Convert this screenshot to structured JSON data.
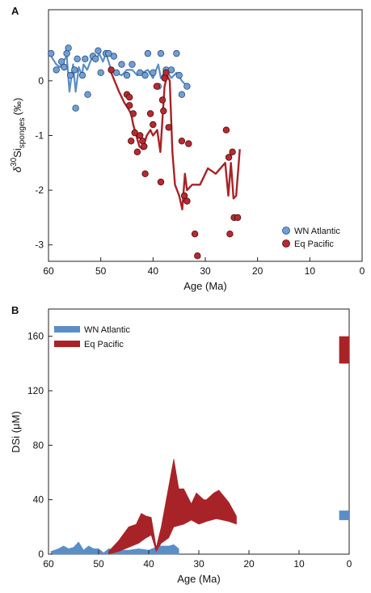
{
  "colors": {
    "wn": "#5b8ec6",
    "eq": "#a82328",
    "wn_marker": "#6f9fd6",
    "eq_marker": "#b72a30"
  },
  "chart_data": [
    {
      "panel": "A",
      "type": "scatter",
      "xlabel": "Age (Ma)",
      "ylabel": "δ30Si sponges (‰)",
      "ylabel_parts": {
        "delta": "δ",
        "sup": "30",
        "base": "Si",
        "sub": "sponges",
        "unit": "(‰)"
      },
      "xlim": [
        60,
        0
      ],
      "ylim": [
        -3.3,
        1.3
      ],
      "x_ticks": [
        60,
        50,
        40,
        30,
        20,
        10,
        0
      ],
      "y_ticks": [
        0,
        -1,
        -2,
        -3
      ],
      "x_tick_labels": [
        "60",
        "50",
        "40",
        "30",
        "20",
        "10",
        "0"
      ],
      "y_tick_labels": [
        "0",
        "-1",
        "-2",
        "-3"
      ],
      "legend": "bottom-right",
      "grid": false,
      "series": [
        {
          "name": "WN Atlantic",
          "color": "#5b8ec6",
          "points": [
            [
              59.5,
              0.5
            ],
            [
              58.5,
              0.2
            ],
            [
              57.5,
              0.35
            ],
            [
              57,
              0.25
            ],
            [
              56.5,
              0.5
            ],
            [
              56.2,
              0.6
            ],
            [
              55.8,
              0.1
            ],
            [
              55,
              0.2
            ],
            [
              54.8,
              -0.5
            ],
            [
              54.5,
              0.4
            ],
            [
              53.5,
              0.1
            ],
            [
              53,
              0.4
            ],
            [
              52.5,
              -0.25
            ],
            [
              51.5,
              0.45
            ],
            [
              51,
              0.4
            ],
            [
              50.5,
              0.55
            ],
            [
              50,
              0.15
            ],
            [
              49,
              0.5
            ],
            [
              48.5,
              0.5
            ],
            [
              47.5,
              0.45
            ],
            [
              47,
              0.15
            ],
            [
              46,
              0.3
            ],
            [
              45,
              0.1
            ],
            [
              44,
              0.3
            ],
            [
              42.5,
              0.15
            ],
            [
              41.5,
              0.1
            ],
            [
              41,
              0.5
            ],
            [
              40,
              0.15
            ],
            [
              39,
              -0.1
            ],
            [
              38.5,
              0.5
            ],
            [
              37.5,
              0.2
            ],
            [
              36.5,
              0.2
            ],
            [
              35.5,
              0.5
            ],
            [
              35,
              0.1
            ],
            [
              34.5,
              -0.25
            ],
            [
              33.5,
              -0.1
            ]
          ],
          "trend": [
            [
              59.5,
              0.45
            ],
            [
              58.5,
              0.3
            ],
            [
              57.8,
              0.25
            ],
            [
              57.2,
              0.35
            ],
            [
              56.5,
              0.45
            ],
            [
              56,
              -0.2
            ],
            [
              55.3,
              0.3
            ],
            [
              54.8,
              -0.2
            ],
            [
              54.2,
              0.25
            ],
            [
              53.6,
              0.1
            ],
            [
              53.3,
              0.3
            ],
            [
              52.6,
              0.2
            ],
            [
              52,
              0.35
            ],
            [
              51.5,
              0.45
            ],
            [
              51,
              0.35
            ],
            [
              50.3,
              0.5
            ],
            [
              49.6,
              0.35
            ],
            [
              49,
              0.5
            ],
            [
              48,
              0.2
            ],
            [
              47,
              0.15
            ],
            [
              46,
              0.1
            ],
            [
              45,
              0.2
            ],
            [
              44,
              0.2
            ],
            [
              43,
              0.1
            ],
            [
              42,
              0.15
            ],
            [
              41,
              0.2
            ],
            [
              40,
              0.05
            ],
            [
              39,
              0.3
            ],
            [
              38.5,
              0.05
            ],
            [
              37.5,
              0.2
            ],
            [
              36.5,
              0.05
            ],
            [
              35.5,
              0.15
            ],
            [
              34.5,
              0
            ],
            [
              33.5,
              -0.1
            ]
          ]
        },
        {
          "name": "Eq Pacific",
          "color": "#a82328",
          "points": [
            [
              48,
              0.2
            ],
            [
              45,
              -0.25
            ],
            [
              44.5,
              -0.3
            ],
            [
              44.2,
              -1.1
            ],
            [
              44.5,
              -0.45
            ],
            [
              43.8,
              -0.6
            ],
            [
              43.5,
              -0.95
            ],
            [
              43,
              -1.3
            ],
            [
              42.5,
              -1
            ],
            [
              42,
              -1.1
            ],
            [
              41.7,
              -1.2
            ],
            [
              41.5,
              -1.7
            ],
            [
              40.5,
              -0.6
            ],
            [
              40,
              -0.8
            ],
            [
              39.3,
              -0.1
            ],
            [
              38.5,
              -1.85
            ],
            [
              38.2,
              -0.35
            ],
            [
              38,
              -0.55
            ],
            [
              37.8,
              0.05
            ],
            [
              37.5,
              0.15
            ],
            [
              37,
              -0.85
            ],
            [
              34.5,
              -1.1
            ],
            [
              34,
              -2.1
            ],
            [
              33.5,
              -2.2
            ],
            [
              33.2,
              -1.15
            ],
            [
              32,
              -2.8
            ],
            [
              31.5,
              -3.2
            ],
            [
              26,
              -0.9
            ],
            [
              25.5,
              -1.4
            ],
            [
              25.3,
              -2.8
            ],
            [
              24.8,
              -1.3
            ],
            [
              24.5,
              -2.5
            ],
            [
              23.8,
              -2.5
            ]
          ],
          "trend": [
            [
              48,
              0.15
            ],
            [
              46.5,
              -0.2
            ],
            [
              45.5,
              -0.4
            ],
            [
              44.8,
              -0.5
            ],
            [
              44.2,
              -0.6
            ],
            [
              43.8,
              -0.8
            ],
            [
              43.2,
              -1
            ],
            [
              42.6,
              -1.2
            ],
            [
              42,
              -1.25
            ],
            [
              41.2,
              -1
            ],
            [
              40.5,
              -0.9
            ],
            [
              40,
              -1
            ],
            [
              39.2,
              -0.9
            ],
            [
              38.6,
              -1.3
            ],
            [
              38.2,
              -0.7
            ],
            [
              37.8,
              -0.1
            ],
            [
              37.3,
              0.1
            ],
            [
              36.8,
              0
            ],
            [
              36.3,
              -1.3
            ],
            [
              35.8,
              -1.9
            ],
            [
              35,
              -2.1
            ],
            [
              34.4,
              -2.35
            ],
            [
              33.9,
              -1.7
            ],
            [
              33.5,
              -2
            ],
            [
              32.5,
              -1.9
            ],
            [
              31,
              -1.9
            ],
            [
              29.5,
              -1.6
            ],
            [
              28,
              -1.7
            ],
            [
              26.2,
              -1.5
            ],
            [
              25.6,
              -2.1
            ],
            [
              25.1,
              -1.5
            ],
            [
              24.6,
              -2.15
            ],
            [
              24.1,
              -2.1
            ],
            [
              23.4,
              -1.25
            ]
          ]
        }
      ]
    },
    {
      "panel": "B",
      "type": "area",
      "xlabel": "Age (Ma)",
      "ylabel": "DSi (μM)",
      "xlim": [
        60,
        0
      ],
      "ylim": [
        0,
        180
      ],
      "x_ticks": [
        60,
        50,
        40,
        30,
        20,
        10,
        0
      ],
      "y_ticks": [
        0,
        40,
        80,
        120,
        160
      ],
      "x_tick_labels": [
        "60",
        "50",
        "40",
        "30",
        "20",
        "10",
        "0"
      ],
      "y_tick_labels": [
        "0",
        "40",
        "80",
        "120",
        "160"
      ],
      "legend": "top-left",
      "grid": false,
      "series": [
        {
          "name": "WN Atlantic",
          "color": "#5b8ec6",
          "upper": [
            [
              59.5,
              2
            ],
            [
              58,
              4
            ],
            [
              57,
              6
            ],
            [
              56,
              4
            ],
            [
              55,
              5
            ],
            [
              54,
              9
            ],
            [
              53,
              3
            ],
            [
              52,
              6
            ],
            [
              51,
              4
            ],
            [
              50,
              4
            ],
            [
              49,
              1
            ],
            [
              48,
              4
            ],
            [
              46,
              3
            ],
            [
              44,
              3
            ],
            [
              42,
              4
            ],
            [
              40,
              3
            ],
            [
              38,
              6
            ],
            [
              36,
              6
            ],
            [
              35,
              7
            ],
            [
              34,
              4
            ]
          ],
          "lower": [
            [
              59.5,
              0
            ],
            [
              34,
              0
            ]
          ],
          "modern_band": [
            25,
            32
          ],
          "modern_band_ages": [
            2,
            0
          ]
        },
        {
          "name": "Eq Pacific",
          "color": "#a82328",
          "upper": [
            [
              48,
              2
            ],
            [
              46,
              10
            ],
            [
              44,
              20
            ],
            [
              42.5,
              22
            ],
            [
              41.5,
              30
            ],
            [
              40.5,
              28
            ],
            [
              39.5,
              27
            ],
            [
              38.5,
              5
            ],
            [
              37.5,
              20
            ],
            [
              36,
              50
            ],
            [
              35,
              70
            ],
            [
              34,
              48
            ],
            [
              33,
              48
            ],
            [
              31.5,
              37
            ],
            [
              30.5,
              45
            ],
            [
              29,
              40
            ],
            [
              28.5,
              40
            ],
            [
              27,
              45
            ],
            [
              26,
              47
            ],
            [
              24,
              38
            ],
            [
              22.5,
              28
            ]
          ],
          "lower": [
            [
              48,
              0
            ],
            [
              46,
              2
            ],
            [
              44,
              5
            ],
            [
              42,
              8
            ],
            [
              40.5,
              12
            ],
            [
              39.5,
              14
            ],
            [
              38.5,
              2
            ],
            [
              37.5,
              8
            ],
            [
              36,
              12
            ],
            [
              35,
              20
            ],
            [
              33,
              22
            ],
            [
              31.5,
              25
            ],
            [
              30,
              22
            ],
            [
              28.5,
              24
            ],
            [
              26.5,
              26
            ],
            [
              24,
              24
            ],
            [
              22.5,
              22
            ]
          ],
          "modern_band": [
            140,
            160
          ],
          "modern_band_ages": [
            2,
            0
          ]
        }
      ]
    }
  ]
}
